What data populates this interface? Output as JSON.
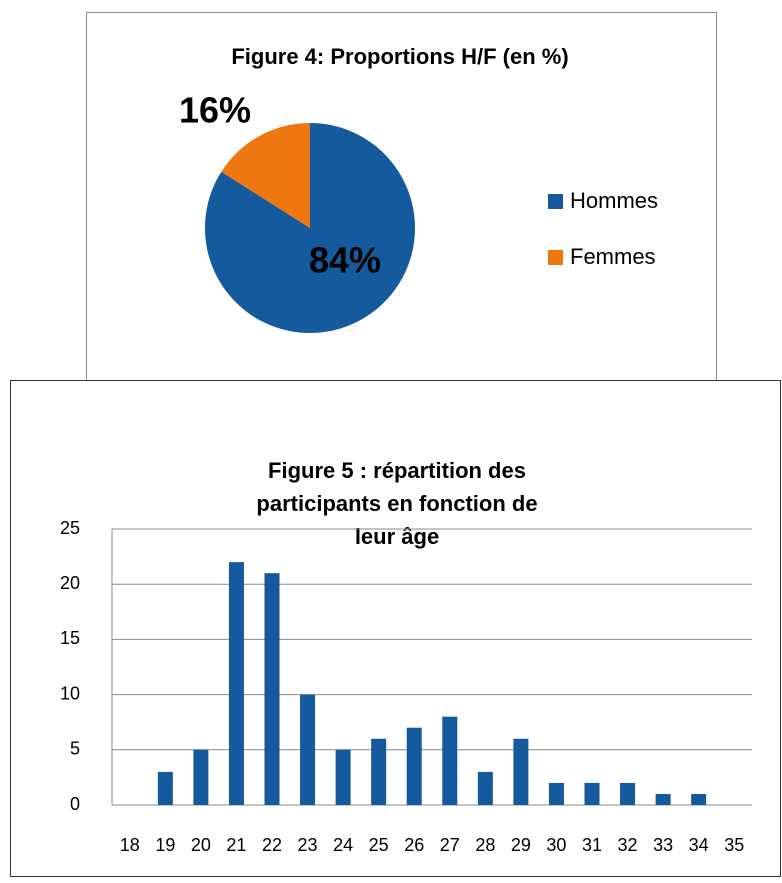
{
  "chart_data": [
    {
      "type": "pie",
      "title": "Figure 4: Proportions H/F (en %)",
      "categories": [
        "Hommes",
        "Femmes"
      ],
      "values": [
        84,
        16
      ],
      "value_labels": [
        "84%",
        "16%"
      ],
      "colors": [
        "#145a9c",
        "#ee7710"
      ],
      "legend": "right"
    },
    {
      "type": "bar",
      "title": [
        "Figure 5 : répartition des",
        "participants en fonction de",
        "leur âge"
      ],
      "categories": [
        "18",
        "19",
        "20",
        "21",
        "22",
        "23",
        "24",
        "25",
        "26",
        "27",
        "28",
        "29",
        "30",
        "31",
        "32",
        "33",
        "34",
        "35"
      ],
      "values": [
        0,
        3,
        5,
        22,
        21,
        10,
        5,
        6,
        7,
        8,
        3,
        6,
        2,
        2,
        2,
        1,
        1,
        0
      ],
      "color": "#145a9c",
      "ylim": [
        0,
        25
      ],
      "yticks": [
        0,
        5,
        10,
        15,
        20,
        25
      ],
      "grid": true
    }
  ]
}
